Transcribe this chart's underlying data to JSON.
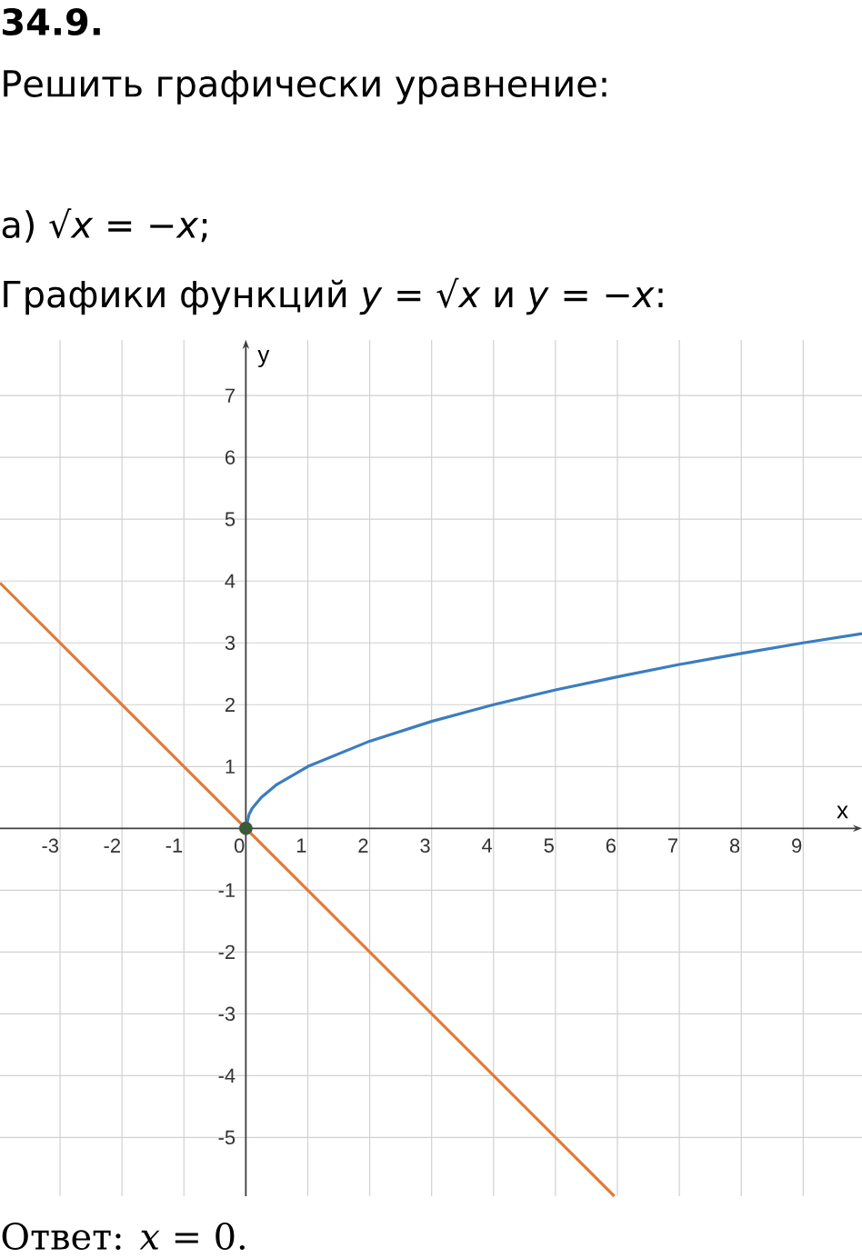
{
  "chart_data": {
    "type": "line",
    "title": "34.9.",
    "subtitle": "Решить графически уравнение:",
    "annotations": [
      "а) √*x* = −*x*;",
      "Графики функций *y* = √*x* и *y* = −*x*:",
      "Ответ:  *x* = 0."
    ],
    "xlabel": "x",
    "ylabel": "y",
    "xlim": [
      -3.97,
      9.95
    ],
    "ylim": [
      -5.95,
      7.9
    ],
    "xticks": [
      -3,
      -2,
      -1,
      0,
      1,
      2,
      3,
      4,
      5,
      6,
      7,
      8,
      9
    ],
    "yticks": [
      -5,
      -4,
      -3,
      -2,
      -1,
      1,
      2,
      3,
      4,
      5,
      6,
      7
    ],
    "grid": true,
    "series": [
      {
        "color": "#3b7dc0",
        "x": [
          0,
          0.05,
          0.1,
          0.25,
          0.5,
          1,
          2,
          3,
          4,
          5,
          6,
          7,
          8,
          9,
          9.95
        ],
        "values": [
          0,
          0.22,
          0.32,
          0.5,
          0.71,
          1,
          1.41,
          1.73,
          2,
          2.24,
          2.45,
          2.65,
          2.83,
          3,
          3.15
        ]
      },
      {
        "color": "#e07b39",
        "x": [
          -3.97,
          5.95
        ],
        "values": [
          3.97,
          -5.95
        ]
      },
      {
        "type": "scatter",
        "marker": "circle",
        "color": "#3a5a3a",
        "x": [
          0
        ],
        "values": [
          0
        ]
      }
    ]
  }
}
